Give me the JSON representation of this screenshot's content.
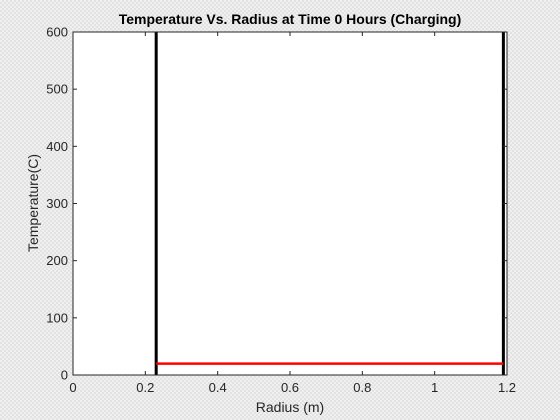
{
  "chart_data": {
    "type": "line",
    "title": "Temperature Vs. Radius at Time 0 Hours (Charging)",
    "xlabel": "Radius (m)",
    "ylabel": "Temperature(C)",
    "xlim": [
      0,
      1.2
    ],
    "ylim": [
      0,
      600
    ],
    "xticks": [
      0,
      0.2,
      0.4,
      0.6,
      0.8,
      1,
      1.2
    ],
    "xtick_labels": [
      "0",
      "0.2",
      "0.4",
      "0.6",
      "0.8",
      "1",
      "1.2"
    ],
    "yticks": [
      0,
      100,
      200,
      300,
      400,
      500,
      600
    ],
    "ytick_labels": [
      "0",
      "100",
      "200",
      "300",
      "400",
      "500",
      "600"
    ],
    "grid": false,
    "legend": "none",
    "series": [
      {
        "color": "#ff0000",
        "x": [
          0.23,
          1.19
        ],
        "y": [
          20,
          20
        ]
      }
    ],
    "boundary_lines": [
      {
        "x": 0.23,
        "color": "#000000"
      },
      {
        "x": 1.19,
        "color": "#000000"
      }
    ]
  }
}
